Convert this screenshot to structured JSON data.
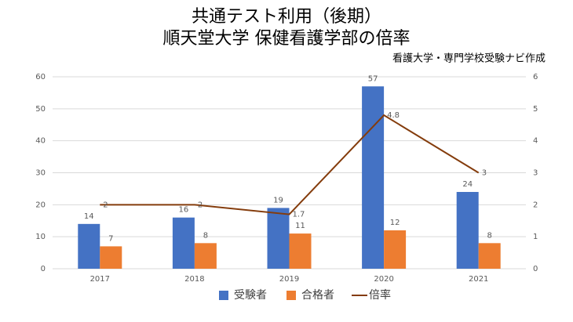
{
  "chart_data": {
    "type": "bar",
    "title": "共通テスト利用（後期）",
    "subtitle": "順天堂大学 保健看護学部の倍率",
    "note": "看護大学・専門学校受験ナビ作成",
    "categories": [
      "2017",
      "2018",
      "2019",
      "2020",
      "2021"
    ],
    "series": [
      {
        "name": "受験者",
        "color": "#4472c4",
        "type": "bar",
        "values": [
          14,
          16,
          19,
          57,
          24
        ]
      },
      {
        "name": "合格者",
        "color": "#ed7d31",
        "type": "bar",
        "values": [
          7,
          8,
          11,
          12,
          8
        ]
      },
      {
        "name": "倍率",
        "color": "#843c0c",
        "type": "line",
        "axis": "y2",
        "values": [
          2,
          2,
          1.7,
          4.8,
          3
        ]
      }
    ],
    "ylim": [
      0,
      60
    ],
    "yticks": [
      0,
      10,
      20,
      30,
      40,
      50,
      60
    ],
    "y2lim": [
      0,
      6
    ],
    "y2ticks": [
      0,
      1,
      2,
      3,
      4,
      5,
      6
    ],
    "grid": true,
    "legend": "bottom"
  }
}
